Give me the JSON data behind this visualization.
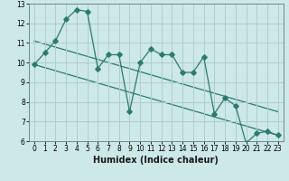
{
  "xlabel": "Humidex (Indice chaleur)",
  "background_color": "#cce8e8",
  "grid_color": "#b0cccc",
  "line_color": "#2d7a6e",
  "x_values": [
    0,
    1,
    2,
    3,
    4,
    5,
    6,
    7,
    8,
    9,
    10,
    11,
    12,
    13,
    14,
    15,
    16,
    17,
    18,
    19,
    20,
    21,
    22,
    23
  ],
  "data_line": [
    9.9,
    10.5,
    11.1,
    12.2,
    12.7,
    12.6,
    9.7,
    10.4,
    10.4,
    7.5,
    10.0,
    10.7,
    10.4,
    10.4,
    9.5,
    9.5,
    10.3,
    7.4,
    8.2,
    7.8,
    5.9,
    6.4,
    6.5,
    6.3
  ],
  "trend1_x": [
    0,
    23
  ],
  "trend1_y": [
    9.9,
    6.3
  ],
  "trend2_x": [
    0,
    23
  ],
  "trend2_y": [
    11.1,
    7.5
  ],
  "ylim": [
    6,
    13
  ],
  "xlim": [
    -0.5,
    23.5
  ],
  "yticks": [
    6,
    7,
    8,
    9,
    10,
    11,
    12,
    13
  ],
  "xticks": [
    0,
    1,
    2,
    3,
    4,
    5,
    6,
    7,
    8,
    9,
    10,
    11,
    12,
    13,
    14,
    15,
    16,
    17,
    18,
    19,
    20,
    21,
    22,
    23
  ],
  "tick_fontsize": 5.5,
  "xlabel_fontsize": 7
}
